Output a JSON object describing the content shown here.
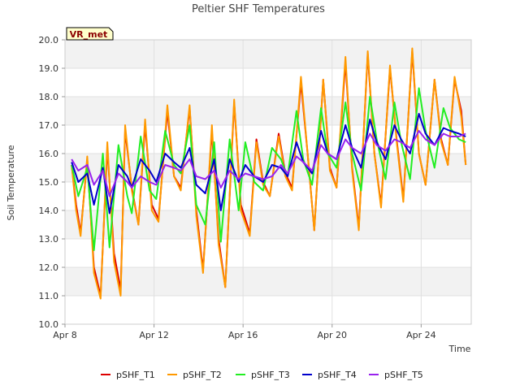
{
  "chart_data": {
    "type": "line",
    "title": "Peltier SHF Temperatures",
    "xlabel": "Time",
    "ylabel": "Soil Temperature",
    "badge": "VR_met",
    "ylim": [
      10.0,
      20.0
    ],
    "yticks": [
      "10.0",
      "11.0",
      "12.0",
      "13.0",
      "14.0",
      "15.0",
      "16.0",
      "17.0",
      "18.0",
      "19.0",
      "20.0"
    ],
    "xlim_days": [
      8.0,
      26.25
    ],
    "xticks": [
      {
        "day": 8,
        "label": "Apr 8"
      },
      {
        "day": 12,
        "label": "Apr 12"
      },
      {
        "day": 16,
        "label": "Apr 16"
      },
      {
        "day": 20,
        "label": "Apr 20"
      },
      {
        "day": 24,
        "label": "Apr 24"
      }
    ],
    "grid": true,
    "legend_position": "bottom",
    "series": [
      {
        "name": "pSHF_T1",
        "color": "#dd0000",
        "x": [
          8.3,
          8.5,
          8.7,
          9.0,
          9.3,
          9.6,
          9.9,
          10.2,
          10.5,
          10.7,
          11.0,
          11.3,
          11.6,
          11.9,
          12.2,
          12.6,
          12.9,
          13.2,
          13.6,
          13.9,
          14.2,
          14.6,
          14.9,
          15.2,
          15.6,
          15.9,
          16.3,
          16.6,
          16.9,
          17.2,
          17.6,
          17.9,
          18.2,
          18.6,
          18.9,
          19.2,
          19.6,
          19.9,
          20.2,
          20.6,
          20.9,
          21.2,
          21.6,
          21.9,
          22.2,
          22.6,
          22.9,
          23.2,
          23.6,
          23.9,
          24.2,
          24.6,
          24.9,
          25.2,
          25.5,
          25.8,
          26.0
        ],
        "y": [
          15.6,
          14.2,
          13.2,
          15.8,
          12.0,
          11.0,
          16.2,
          12.5,
          11.2,
          16.8,
          14.8,
          13.5,
          17.0,
          14.2,
          13.7,
          17.5,
          15.2,
          14.8,
          17.6,
          14.0,
          11.9,
          16.8,
          13.0,
          11.3,
          17.8,
          14.2,
          13.2,
          16.5,
          15.0,
          14.5,
          16.7,
          15.3,
          14.8,
          18.5,
          16.0,
          13.3,
          18.6,
          15.5,
          14.8,
          19.2,
          15.5,
          13.4,
          19.5,
          16.0,
          14.2,
          19.0,
          16.5,
          14.4,
          19.6,
          16.0,
          14.9,
          18.6,
          16.5,
          15.6,
          18.6,
          17.5,
          15.6
        ]
      },
      {
        "name": "pSHF_T2",
        "color": "#ff9900",
        "x": [
          8.3,
          8.5,
          8.7,
          9.0,
          9.3,
          9.6,
          9.9,
          10.2,
          10.5,
          10.7,
          11.0,
          11.3,
          11.6,
          11.9,
          12.2,
          12.6,
          12.9,
          13.2,
          13.6,
          13.9,
          14.2,
          14.6,
          14.9,
          15.2,
          15.6,
          15.9,
          16.3,
          16.6,
          16.9,
          17.2,
          17.6,
          17.9,
          18.2,
          18.6,
          18.9,
          19.2,
          19.6,
          19.9,
          20.2,
          20.6,
          20.9,
          21.2,
          21.6,
          21.9,
          22.2,
          22.6,
          22.9,
          23.2,
          23.6,
          23.9,
          24.2,
          24.6,
          24.9,
          25.2,
          25.5,
          25.8,
          26.0
        ],
        "y": [
          15.6,
          14.0,
          13.1,
          15.9,
          11.8,
          10.9,
          16.4,
          12.2,
          11.0,
          17.0,
          14.7,
          13.5,
          17.2,
          14.0,
          13.6,
          17.7,
          15.2,
          14.7,
          17.7,
          13.8,
          11.8,
          17.0,
          12.8,
          11.3,
          17.9,
          14.0,
          13.1,
          16.4,
          14.9,
          14.5,
          16.6,
          15.2,
          14.7,
          18.7,
          16.0,
          13.3,
          18.6,
          15.4,
          14.8,
          19.4,
          15.4,
          13.3,
          19.6,
          16.0,
          14.1,
          19.1,
          16.4,
          14.3,
          19.7,
          16.0,
          14.9,
          18.6,
          16.4,
          15.6,
          18.7,
          17.3,
          15.6
        ]
      },
      {
        "name": "pSHF_T3",
        "color": "#22ee22",
        "x": [
          8.3,
          8.6,
          9.0,
          9.3,
          9.7,
          10.0,
          10.4,
          10.8,
          11.0,
          11.4,
          11.8,
          12.1,
          12.5,
          12.9,
          13.2,
          13.6,
          13.9,
          14.3,
          14.7,
          15.0,
          15.4,
          15.8,
          16.1,
          16.5,
          16.9,
          17.3,
          17.7,
          18.0,
          18.4,
          18.7,
          19.1,
          19.5,
          19.8,
          20.2,
          20.6,
          20.9,
          21.3,
          21.7,
          22.0,
          22.4,
          22.8,
          23.1,
          23.5,
          23.9,
          24.2,
          24.6,
          25.0,
          25.3,
          25.7,
          26.0
        ],
        "y": [
          15.6,
          14.5,
          15.5,
          12.6,
          16.0,
          12.7,
          16.3,
          14.5,
          13.9,
          16.6,
          14.7,
          14.4,
          16.8,
          15.6,
          15.3,
          17.0,
          14.2,
          13.5,
          16.4,
          12.9,
          16.5,
          14.0,
          16.4,
          15.0,
          14.7,
          16.2,
          15.8,
          15.2,
          17.5,
          15.8,
          14.9,
          17.6,
          16.0,
          15.5,
          17.8,
          16.0,
          14.7,
          18.0,
          16.5,
          15.1,
          17.8,
          16.4,
          15.1,
          18.3,
          16.8,
          15.5,
          17.6,
          16.9,
          16.5,
          16.4
        ]
      },
      {
        "name": "pSHF_T4",
        "color": "#0000cc",
        "x": [
          8.3,
          8.6,
          9.0,
          9.3,
          9.7,
          10.0,
          10.4,
          10.8,
          11.0,
          11.4,
          11.8,
          12.1,
          12.5,
          12.9,
          13.2,
          13.6,
          13.9,
          14.3,
          14.7,
          15.0,
          15.4,
          15.8,
          16.1,
          16.5,
          16.9,
          17.3,
          17.7,
          18.0,
          18.4,
          18.7,
          19.1,
          19.5,
          19.8,
          20.2,
          20.6,
          20.9,
          21.3,
          21.7,
          22.0,
          22.4,
          22.8,
          23.1,
          23.5,
          23.9,
          24.2,
          24.6,
          25.0,
          25.3,
          25.7,
          26.0
        ],
        "y": [
          15.7,
          15.0,
          15.3,
          14.2,
          15.5,
          13.9,
          15.6,
          15.2,
          14.8,
          15.8,
          15.4,
          15.0,
          16.0,
          15.7,
          15.5,
          16.2,
          14.9,
          14.6,
          15.8,
          14.0,
          15.8,
          15.0,
          15.6,
          15.2,
          15.0,
          15.6,
          15.5,
          15.2,
          16.4,
          15.7,
          15.3,
          16.8,
          16.0,
          15.8,
          17.0,
          16.2,
          15.5,
          17.2,
          16.4,
          15.8,
          17.0,
          16.5,
          16.0,
          17.4,
          16.7,
          16.3,
          16.9,
          16.8,
          16.7,
          16.6
        ]
      },
      {
        "name": "pSHF_T5",
        "color": "#9922ee",
        "x": [
          8.3,
          8.6,
          9.0,
          9.3,
          9.7,
          10.0,
          10.4,
          10.8,
          11.0,
          11.4,
          11.8,
          12.1,
          12.5,
          12.9,
          13.2,
          13.6,
          13.9,
          14.3,
          14.7,
          15.0,
          15.4,
          15.8,
          16.1,
          16.5,
          16.9,
          17.3,
          17.7,
          18.0,
          18.4,
          18.7,
          19.1,
          19.5,
          19.8,
          20.2,
          20.6,
          20.9,
          21.3,
          21.7,
          22.0,
          22.4,
          22.8,
          23.1,
          23.5,
          23.9,
          24.2,
          24.6,
          25.0,
          25.3,
          25.7,
          26.0
        ],
        "y": [
          15.8,
          15.4,
          15.6,
          14.9,
          15.4,
          14.5,
          15.3,
          15.0,
          14.8,
          15.2,
          15.0,
          14.9,
          15.6,
          15.5,
          15.4,
          15.8,
          15.2,
          15.1,
          15.4,
          14.8,
          15.4,
          15.1,
          15.3,
          15.2,
          15.1,
          15.2,
          15.6,
          15.3,
          15.9,
          15.7,
          15.4,
          16.3,
          16.0,
          15.8,
          16.5,
          16.2,
          16.0,
          16.7,
          16.3,
          16.1,
          16.5,
          16.4,
          16.2,
          16.8,
          16.5,
          16.3,
          16.7,
          16.6,
          16.6,
          16.7
        ]
      }
    ]
  }
}
